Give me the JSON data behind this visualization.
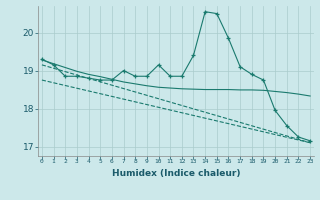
{
  "xlabel": "Humidex (Indice chaleur)",
  "background_color": "#cce8ea",
  "grid_color": "#aacccc",
  "line_color": "#1a7a6e",
  "x_ticks": [
    0,
    1,
    2,
    3,
    4,
    5,
    6,
    7,
    8,
    9,
    10,
    11,
    12,
    13,
    14,
    15,
    16,
    17,
    18,
    19,
    20,
    21,
    22,
    23
  ],
  "ylim": [
    16.75,
    20.7
  ],
  "yticks": [
    17,
    18,
    19,
    20
  ],
  "series": [
    {
      "x": [
        0,
        1,
        2,
        3,
        4,
        5,
        6,
        7,
        8,
        9,
        10,
        11,
        12,
        13,
        14,
        15,
        16,
        17,
        18,
        19,
        20,
        21,
        22,
        23
      ],
      "y": [
        19.3,
        19.15,
        18.85,
        18.85,
        18.8,
        18.75,
        18.75,
        19.0,
        18.85,
        18.85,
        19.15,
        18.85,
        18.85,
        19.4,
        20.55,
        20.5,
        19.85,
        19.1,
        18.9,
        18.75,
        17.95,
        17.55,
        17.25,
        17.15
      ],
      "marker": "+",
      "linestyle": "-"
    },
    {
      "x": [
        0,
        1,
        2,
        3,
        4,
        5,
        6,
        7,
        8,
        9,
        10,
        11,
        12,
        13,
        14,
        15,
        16,
        17,
        18,
        19,
        20,
        21,
        22,
        23
      ],
      "y": [
        19.28,
        19.18,
        19.08,
        18.98,
        18.9,
        18.84,
        18.77,
        18.7,
        18.65,
        18.6,
        18.56,
        18.54,
        18.52,
        18.51,
        18.5,
        18.5,
        18.5,
        18.49,
        18.49,
        18.48,
        18.45,
        18.42,
        18.38,
        18.33
      ],
      "marker": null,
      "linestyle": "-"
    },
    {
      "x": [
        0,
        23
      ],
      "y": [
        19.15,
        17.1
      ],
      "marker": null,
      "linestyle": "--"
    },
    {
      "x": [
        0,
        23
      ],
      "y": [
        18.75,
        17.1
      ],
      "marker": null,
      "linestyle": "--"
    }
  ]
}
